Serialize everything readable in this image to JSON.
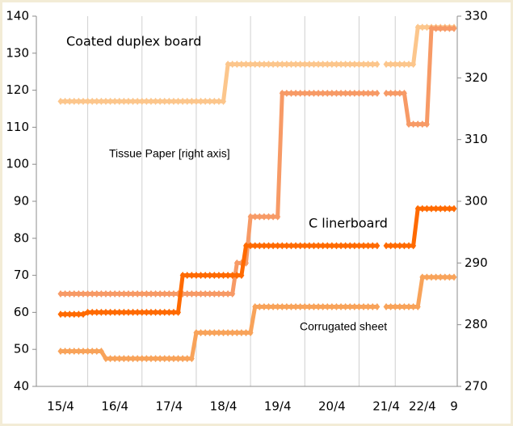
{
  "chart_data": {
    "type": "line",
    "categories": [
      "15/4",
      null,
      null,
      null,
      null,
      null,
      null,
      null,
      null,
      null,
      null,
      null,
      "16/4",
      null,
      null,
      null,
      null,
      null,
      null,
      null,
      null,
      null,
      null,
      null,
      "17/4",
      null,
      null,
      null,
      null,
      null,
      null,
      null,
      null,
      null,
      null,
      null,
      "18/4",
      null,
      null,
      null,
      null,
      null,
      null,
      null,
      null,
      null,
      null,
      null,
      "19/4",
      null,
      null,
      null,
      null,
      null,
      null,
      null,
      null,
      null,
      null,
      null,
      "20/4",
      null,
      null,
      null,
      null,
      null,
      null,
      null,
      null,
      null,
      null,
      null,
      "21/4",
      null,
      null,
      null,
      null,
      null,
      null,
      null,
      "22/4",
      null,
      null,
      null,
      null,
      null,
      null,
      "9"
    ],
    "ylim": [
      40,
      140
    ],
    "yticks": [
      40,
      50,
      60,
      70,
      80,
      90,
      100,
      110,
      120,
      130,
      140
    ],
    "y2lim": [
      270,
      330
    ],
    "y2ticks": [
      270,
      280,
      290,
      300,
      310,
      320,
      330
    ],
    "series": [
      {
        "name": "Coated duplex board",
        "color": "#fcc68c",
        "values": [
          117,
          117,
          117,
          117,
          117,
          117,
          117,
          117,
          117,
          117,
          117,
          117,
          117,
          117,
          117,
          117,
          117,
          117,
          117,
          117,
          117,
          117,
          117,
          117,
          117,
          117,
          117,
          117,
          117,
          117,
          117,
          117,
          117,
          117,
          117,
          117,
          117,
          127,
          127,
          127,
          127,
          127,
          127,
          127,
          127,
          127,
          127,
          127,
          127,
          127,
          127,
          127,
          127,
          127,
          127,
          127,
          127,
          127,
          127,
          127,
          127,
          127,
          127,
          127,
          127,
          127,
          127,
          127,
          127,
          127,
          127,
          null,
          127,
          127,
          127,
          127,
          127,
          127,
          127,
          137,
          137,
          137,
          137,
          137,
          137,
          137,
          137,
          137
        ]
      },
      {
        "name": "Tissue Paper [right axis]",
        "color": "#f79a66",
        "axis": "y2",
        "values": [
          285,
          285,
          285,
          285,
          285,
          285,
          285,
          285,
          285,
          285,
          285,
          285,
          285,
          285,
          285,
          285,
          285,
          285,
          285,
          285,
          285,
          285,
          285,
          285,
          285,
          285,
          285,
          285,
          285,
          285,
          285,
          285,
          285,
          285,
          285,
          285,
          285,
          285,
          285,
          290,
          290,
          290,
          297.5,
          297.5,
          297.5,
          297.5,
          297.5,
          297.5,
          297.5,
          317.5,
          317.5,
          317.5,
          317.5,
          317.5,
          317.5,
          317.5,
          317.5,
          317.5,
          317.5,
          317.5,
          317.5,
          317.5,
          317.5,
          317.5,
          317.5,
          317.5,
          317.5,
          317.5,
          317.5,
          317.5,
          317.5,
          null,
          317.5,
          317.5,
          317.5,
          317.5,
          317.5,
          312.5,
          312.5,
          312.5,
          312.5,
          312.5,
          328,
          328,
          328,
          328,
          328,
          328
        ]
      },
      {
        "name": "C linerboard",
        "color": "#ff6a00",
        "values": [
          59.5,
          59.5,
          59.5,
          59.5,
          59.5,
          59.5,
          60,
          60,
          60,
          60,
          60,
          60,
          60,
          60,
          60,
          60,
          60,
          60,
          60,
          60,
          60,
          60,
          60,
          60,
          60,
          60,
          60,
          70,
          70,
          70,
          70,
          70,
          70,
          70,
          70,
          70,
          70,
          70,
          70,
          70,
          70,
          78,
          78,
          78,
          78,
          78,
          78,
          78,
          78,
          78,
          78,
          78,
          78,
          78,
          78,
          78,
          78,
          78,
          78,
          78,
          78,
          78,
          78,
          78,
          78,
          78,
          78,
          78,
          78,
          78,
          78,
          null,
          78,
          78,
          78,
          78,
          78,
          78,
          78,
          88,
          88,
          88,
          88,
          88,
          88,
          88,
          88,
          88
        ]
      },
      {
        "name": "Corrugated sheet",
        "color": "#f8a35a",
        "values": [
          49.5,
          49.5,
          49.5,
          49.5,
          49.5,
          49.5,
          49.5,
          49.5,
          49.5,
          49.5,
          47.5,
          47.5,
          47.5,
          47.5,
          47.5,
          47.5,
          47.5,
          47.5,
          47.5,
          47.5,
          47.5,
          47.5,
          47.5,
          47.5,
          47.5,
          47.5,
          47.5,
          47.5,
          47.5,
          47.5,
          54.5,
          54.5,
          54.5,
          54.5,
          54.5,
          54.5,
          54.5,
          54.5,
          54.5,
          54.5,
          54.5,
          54.5,
          54.5,
          61.5,
          61.5,
          61.5,
          61.5,
          61.5,
          61.5,
          61.5,
          61.5,
          61.5,
          61.5,
          61.5,
          61.5,
          61.5,
          61.5,
          61.5,
          61.5,
          61.5,
          61.5,
          61.5,
          61.5,
          61.5,
          61.5,
          61.5,
          61.5,
          61.5,
          61.5,
          61.5,
          61.5,
          null,
          61.5,
          61.5,
          61.5,
          61.5,
          61.5,
          61.5,
          61.5,
          61.5,
          69.5,
          69.5,
          69.5,
          69.5,
          69.5,
          69.5,
          69.5,
          69.5
        ]
      }
    ]
  }
}
